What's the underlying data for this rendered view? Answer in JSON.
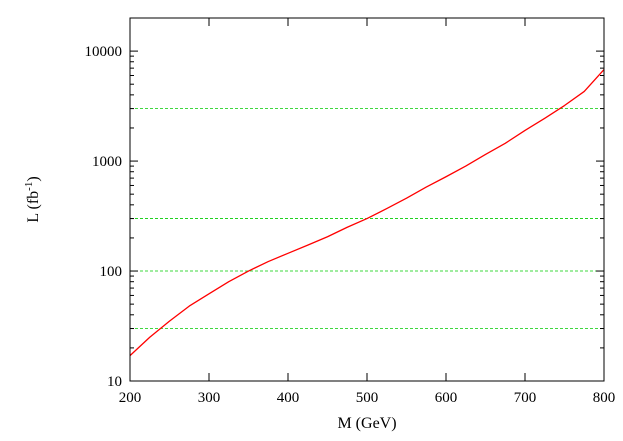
{
  "chart_data": {
    "type": "line",
    "title": "",
    "xlabel": "M (GeV)",
    "ylabel": "L (fb",
    "ylabel_superscript": "-1",
    "ylabel_suffix": ")",
    "xlim": [
      200,
      800
    ],
    "ylim": [
      10,
      20000
    ],
    "yscale": "log",
    "x_ticks": [
      200,
      300,
      400,
      500,
      600,
      700,
      800
    ],
    "x_tick_labels": [
      "200",
      "300",
      "400",
      "500",
      "600",
      "700",
      "800"
    ],
    "y_ticks": [
      10,
      100,
      1000,
      10000
    ],
    "y_tick_labels": [
      "10",
      "100",
      "1000",
      "10000"
    ],
    "grid": false,
    "legend": "none",
    "colors": {
      "curve": "#ff0000",
      "reference_lines": "#00cc00",
      "axes": "#000000"
    },
    "series": [
      {
        "style": "solid",
        "x": [
          200,
          225,
          250,
          275,
          300,
          325,
          350,
          375,
          400,
          425,
          450,
          475,
          500,
          525,
          550,
          575,
          600,
          625,
          650,
          675,
          700,
          725,
          750,
          775,
          800
        ],
        "y": [
          17,
          25,
          35,
          48,
          62,
          80,
          100,
          122,
          145,
          172,
          205,
          250,
          300,
          370,
          460,
          580,
          720,
          900,
          1150,
          1450,
          1900,
          2450,
          3200,
          4300,
          6800
        ]
      }
    ],
    "reference_lines": {
      "orientation": "horizontal",
      "style": "dashed",
      "y": [
        30,
        100,
        300,
        3000
      ]
    }
  }
}
